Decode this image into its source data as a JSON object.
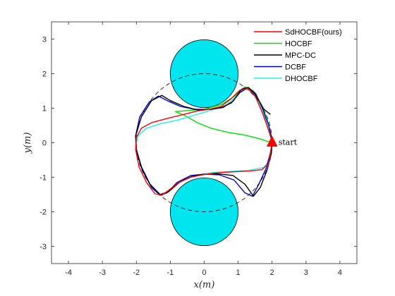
{
  "chart_data": {
    "type": "line",
    "title": "",
    "xlabel": "x(m)",
    "ylabel": "y(m)",
    "xlim": [
      -4.5,
      4.5
    ],
    "ylim": [
      -3.5,
      3.5
    ],
    "xticks": [
      -4,
      -3,
      -2,
      -1,
      0,
      1,
      2,
      3,
      4
    ],
    "yticks": [
      -3,
      -2,
      -1,
      0,
      1,
      2,
      3
    ],
    "grid": false,
    "legend_position": "top-right",
    "obstacles": [
      {
        "cx": 0,
        "cy": 2,
        "r": 1,
        "color": "#00e5ee"
      },
      {
        "cx": 0,
        "cy": -2,
        "r": 1,
        "color": "#00e5ee"
      }
    ],
    "reference_circle": {
      "cx": 0,
      "cy": 0,
      "r": 2,
      "style": "dashed",
      "color": "#000000"
    },
    "start_marker": {
      "x": 2,
      "y": 0,
      "label": "start",
      "color": "#ff0000"
    },
    "series": [
      {
        "name": "SdHOCBF(ours)",
        "color": "#ff0000",
        "points": [
          [
            2,
            0
          ],
          [
            1.9,
            -0.6
          ],
          [
            1.7,
            -0.78
          ],
          [
            1.35,
            -0.82
          ],
          [
            0.9,
            -0.84
          ],
          [
            0.4,
            -0.87
          ],
          [
            0,
            -0.92
          ],
          [
            -0.4,
            -1.0
          ],
          [
            -0.75,
            -1.15
          ],
          [
            -1.05,
            -1.38
          ],
          [
            -1.25,
            -1.52
          ],
          [
            -1.45,
            -1.48
          ],
          [
            -1.7,
            -1.15
          ],
          [
            -1.92,
            -0.7
          ],
          [
            -2.02,
            -0.2
          ],
          [
            -2.0,
            0.15
          ],
          [
            -1.85,
            0.42
          ],
          [
            -1.55,
            0.58
          ],
          [
            -1.1,
            0.7
          ],
          [
            -0.6,
            0.82
          ],
          [
            -0.2,
            0.92
          ],
          [
            0.15,
            0.97
          ],
          [
            0.5,
            1.05
          ],
          [
            0.8,
            1.28
          ],
          [
            1.05,
            1.52
          ],
          [
            1.28,
            1.57
          ],
          [
            1.5,
            1.35
          ],
          [
            1.7,
            0.9
          ],
          [
            1.85,
            0.5
          ],
          [
            1.95,
            0.2
          ],
          [
            2,
            0
          ]
        ]
      },
      {
        "name": "HOCBF",
        "color": "#00dd00",
        "points": [
          [
            2,
            0
          ],
          [
            1.6,
            0.12
          ],
          [
            1.2,
            0.22
          ],
          [
            0.7,
            0.3
          ],
          [
            0.2,
            0.42
          ],
          [
            -0.2,
            0.58
          ],
          [
            -0.55,
            0.78
          ],
          [
            -0.85,
            0.9
          ],
          [
            -0.5,
            0.93
          ],
          [
            0,
            0.97
          ],
          [
            0.5,
            1.1
          ],
          [
            0.9,
            1.35
          ],
          [
            1.2,
            1.62
          ],
          [
            1.45,
            1.5
          ],
          [
            1.7,
            1.08
          ],
          [
            1.88,
            0.6
          ],
          [
            1.98,
            0.2
          ],
          [
            2,
            0
          ]
        ]
      },
      {
        "name": "MPC-DC",
        "color": "#000000",
        "points": [
          [
            1.95,
            0.82
          ],
          [
            1.75,
            0.98
          ],
          [
            1.65,
            1.15
          ],
          [
            1.48,
            1.42
          ],
          [
            1.3,
            1.6
          ],
          [
            1.1,
            1.55
          ],
          [
            0.85,
            1.2
          ],
          [
            0.55,
            1.02
          ],
          [
            0.2,
            0.97
          ],
          [
            -0.2,
            0.95
          ],
          [
            -0.6,
            1.05
          ],
          [
            -1.0,
            1.22
          ],
          [
            -1.25,
            1.37
          ],
          [
            -1.55,
            1.22
          ],
          [
            -1.85,
            0.75
          ],
          [
            -2.02,
            0.2
          ],
          [
            -2.0,
            -0.2
          ],
          [
            -1.85,
            -0.7
          ],
          [
            -1.6,
            -1.2
          ],
          [
            -1.3,
            -1.5
          ],
          [
            -1.05,
            -1.42
          ],
          [
            -0.7,
            -1.12
          ],
          [
            -0.35,
            -0.97
          ],
          [
            0,
            -0.92
          ],
          [
            0.4,
            -0.9
          ],
          [
            0.85,
            -0.95
          ],
          [
            1.2,
            -1.2
          ],
          [
            1.45,
            -1.55
          ],
          [
            1.65,
            -1.3
          ],
          [
            1.85,
            -0.8
          ],
          [
            1.98,
            -0.3
          ],
          [
            2,
            0
          ]
        ]
      },
      {
        "name": "DCBF",
        "color": "#0000cc",
        "points": [
          [
            2,
            0
          ],
          [
            1.95,
            -0.3
          ],
          [
            1.82,
            -0.75
          ],
          [
            1.6,
            -1.22
          ],
          [
            1.42,
            -1.55
          ],
          [
            1.2,
            -1.45
          ],
          [
            0.88,
            -1.08
          ],
          [
            0.45,
            -0.93
          ],
          [
            0,
            -0.91
          ],
          [
            -0.4,
            -0.95
          ],
          [
            -0.8,
            -1.15
          ],
          [
            -1.1,
            -1.45
          ],
          [
            -1.3,
            -1.52
          ],
          [
            -1.55,
            -1.3
          ],
          [
            -1.82,
            -0.8
          ],
          [
            -2.0,
            -0.25
          ],
          [
            -2.02,
            0.2
          ],
          [
            -1.9,
            0.75
          ],
          [
            -1.62,
            1.18
          ],
          [
            -1.35,
            1.35
          ],
          [
            -1.05,
            1.2
          ],
          [
            -0.7,
            1.05
          ],
          [
            -0.3,
            0.97
          ],
          [
            0.1,
            0.96
          ],
          [
            0.5,
            1.02
          ],
          [
            0.8,
            1.15
          ],
          [
            1.05,
            1.45
          ],
          [
            1.3,
            1.6
          ],
          [
            1.52,
            1.42
          ],
          [
            1.72,
            0.98
          ],
          [
            1.9,
            0.5
          ],
          [
            1.98,
            0.15
          ],
          [
            2,
            0
          ]
        ]
      },
      {
        "name": "DHOCBF",
        "color": "#22eeee",
        "points": [
          [
            2,
            0
          ],
          [
            1.95,
            -0.5
          ],
          [
            1.75,
            -0.72
          ],
          [
            1.3,
            -0.8
          ],
          [
            0.8,
            -0.83
          ],
          [
            0.3,
            -0.86
          ],
          [
            0,
            -0.9
          ],
          [
            -0.4,
            -1.0
          ],
          [
            -0.8,
            -1.2
          ],
          [
            -1.1,
            -1.45
          ],
          [
            -1.3,
            -1.52
          ],
          [
            -1.55,
            -1.3
          ],
          [
            -1.85,
            -0.7
          ],
          [
            -2.02,
            -0.1
          ],
          [
            -1.95,
            0.2
          ],
          [
            -1.7,
            0.42
          ],
          [
            -1.3,
            0.55
          ],
          [
            -0.8,
            0.65
          ],
          [
            -0.3,
            0.8
          ],
          [
            0,
            0.88
          ],
          [
            0.3,
            0.97
          ],
          [
            0.6,
            1.05
          ],
          [
            0.9,
            1.3
          ],
          [
            1.15,
            1.55
          ],
          [
            1.35,
            1.55
          ],
          [
            1.58,
            1.2
          ],
          [
            1.78,
            0.75
          ],
          [
            1.92,
            0.3
          ],
          [
            2,
            0
          ]
        ]
      }
    ]
  }
}
